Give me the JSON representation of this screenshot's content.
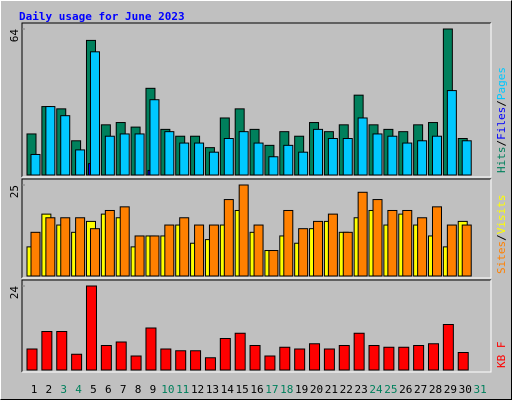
{
  "chart_data": [
    {
      "type": "bar",
      "title": "Daily usage for June 2023",
      "separator": "/",
      "ylim": [
        0,
        64
      ],
      "yticks": [
        64
      ],
      "series": [
        {
          "name": "Hits",
          "color": "#00805c",
          "values": [
            18,
            30,
            29,
            15,
            59,
            22,
            23,
            21,
            38,
            20,
            17,
            17,
            12,
            25,
            29,
            20,
            13,
            19,
            17,
            23,
            19,
            22,
            35,
            22,
            20,
            19,
            22,
            23,
            64,
            16,
            0
          ]
        },
        {
          "name": "Files",
          "color": "#0000ff",
          "values": [
            0,
            0,
            0,
            0,
            5,
            0,
            0,
            0,
            2,
            0,
            0,
            0,
            0,
            0,
            0,
            0,
            0,
            0,
            0,
            0,
            0,
            0,
            0,
            0,
            0,
            0,
            0,
            0,
            0,
            0,
            0
          ]
        },
        {
          "name": "Pages",
          "color": "#00c8ff",
          "values": [
            9,
            30,
            26,
            11,
            54,
            17,
            18,
            18,
            33,
            19,
            14,
            14,
            10,
            16,
            19,
            14,
            8,
            13,
            10,
            20,
            16,
            16,
            25,
            18,
            17,
            14,
            15,
            17,
            37,
            15,
            0
          ]
        }
      ]
    },
    {
      "type": "bar",
      "separator": "/",
      "ylim": [
        0,
        25
      ],
      "yticks": [
        25
      ],
      "series": [
        {
          "name": "Sites",
          "color": "#ff8000",
          "values": [
            12,
            16,
            16,
            16,
            13,
            18,
            19,
            11,
            11,
            14,
            16,
            14,
            14,
            21,
            25,
            14,
            7,
            18,
            13,
            15,
            17,
            12,
            23,
            21,
            18,
            18,
            16,
            19,
            14,
            14,
            0
          ]
        },
        {
          "name": "Visits",
          "color": "#ffff00",
          "values": [
            8,
            17,
            14,
            12,
            15,
            17,
            16,
            8,
            11,
            11,
            14,
            9,
            10,
            14,
            18,
            12,
            7,
            11,
            9,
            13,
            15,
            12,
            16,
            18,
            14,
            17,
            14,
            11,
            8,
            15,
            0
          ]
        }
      ]
    },
    {
      "type": "bar",
      "ylim": [
        0,
        24
      ],
      "yticks": [
        24
      ],
      "categories": [
        "1",
        "2",
        "3",
        "4",
        "5",
        "6",
        "7",
        "8",
        "9",
        "10",
        "11",
        "12",
        "13",
        "14",
        "15",
        "16",
        "17",
        "18",
        "19",
        "20",
        "21",
        "22",
        "23",
        "24",
        "25",
        "26",
        "27",
        "28",
        "29",
        "30",
        "31"
      ],
      "category_colors": [
        "#000000",
        "#000000",
        "#00805c",
        "#00805c",
        "#000000",
        "#000000",
        "#000000",
        "#000000",
        "#000000",
        "#00805c",
        "#00805c",
        "#000000",
        "#000000",
        "#000000",
        "#000000",
        "#000000",
        "#00805c",
        "#00805c",
        "#000000",
        "#000000",
        "#000000",
        "#000000",
        "#000000",
        "#00805c",
        "#00805c",
        "#000000",
        "#000000",
        "#000000",
        "#000000",
        "#000000",
        "#00805c"
      ],
      "series": [
        {
          "name": "KB F",
          "color": "#ff0000",
          "values": [
            6,
            11,
            11,
            4.5,
            24,
            7,
            8,
            4,
            12,
            6,
            5.5,
            5.5,
            3.5,
            9,
            10.5,
            7,
            4,
            6.5,
            6,
            7.5,
            6,
            7,
            10.5,
            7,
            6.5,
            6.5,
            7,
            7.5,
            13,
            5,
            0
          ]
        }
      ]
    }
  ]
}
